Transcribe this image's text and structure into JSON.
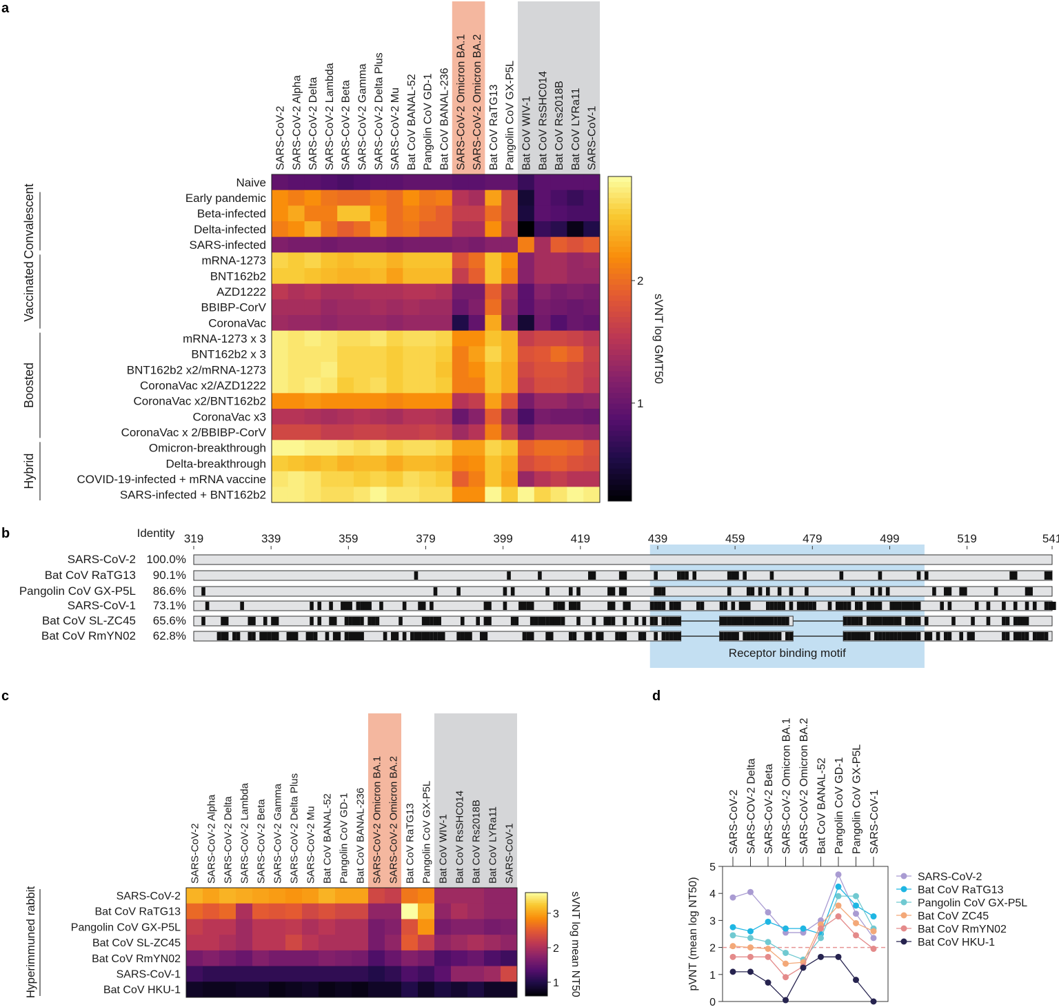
{
  "panels": {
    "a": "a",
    "b": "b",
    "c": "c",
    "d": "d"
  },
  "chart_data": [
    {
      "id": "a",
      "type": "heatmap",
      "columns": [
        "SARS-CoV-2",
        "SARS-CoV-2 Alpha",
        "SARS-CoV-2 Delta",
        "SARS-CoV-2 Lambda",
        "SARS-CoV-2 Beta",
        "SARS-CoV-2 Gamma",
        "SARS-CoV-2 Delta Plus",
        "SARS-CoV-2 Mu",
        "Bat CoV BANAL-52",
        "Pangolin CoV GD-1",
        "Bat CoV BANAL-236",
        "SARS-CoV-2 Omicron BA.1",
        "SARS-CoV-2 Omicron BA.2",
        "Bat CoV RaTG13",
        "Pangolin CoV GX-P5L",
        "Bat CoV WIV-1",
        "Bat CoV RsSHC014",
        "Bat CoV Rs2018B",
        "Bat CoV LYRa11",
        "SARS-CoV-1"
      ],
      "rows": [
        "Naive",
        "Early pandemic",
        "Beta-infected",
        "Delta-infected",
        "SARS-infected",
        "mRNA-1273",
        "BNT162b2",
        "AZD1222",
        "BBIBP-CorV",
        "CoronaVac",
        "mRNA-1273 x 3",
        "BNT162b2 x 3",
        "BNT162b2 x2/mRNA-1273",
        "CoronaVac x2/AZD1222",
        "CoronaVac x2/BNT162b2",
        "CoronaVac x3",
        "CoronaVac x 2/BBIBP-CorV",
        "Omicron-breakthrough",
        "Delta-breakthrough",
        "COVID-19-infected + mRNA vaccine",
        "SARS-infected + BNT162b2"
      ],
      "groups": [
        {
          "label": "Convalescent",
          "from": 1,
          "to": 4
        },
        {
          "label": "Vaccinated",
          "from": 5,
          "to": 9
        },
        {
          "label": "Boosted",
          "from": 10,
          "to": 16
        },
        {
          "label": "Hybrid",
          "from": 17,
          "to": 20
        }
      ],
      "highlight_orange_cols": [
        11,
        12
      ],
      "highlight_gray_cols": [
        15,
        16,
        17,
        18,
        19
      ],
      "colorbar": {
        "label": "sVNT log GMT50",
        "ticks": [
          "1",
          "2"
        ],
        "tick_values": [
          1,
          2
        ],
        "vmin": 0.2,
        "vmax": 2.85
      },
      "values": [
        [
          0.95,
          0.9,
          0.9,
          0.85,
          0.8,
          0.85,
          0.9,
          0.9,
          0.95,
          0.95,
          0.95,
          0.9,
          0.9,
          0.95,
          0.95,
          0.7,
          0.9,
          0.9,
          0.9,
          0.9
        ],
        [
          2.2,
          2.1,
          2.2,
          2.05,
          2.0,
          2.0,
          2.1,
          2.0,
          2.2,
          2.05,
          2.1,
          1.5,
          1.4,
          2.3,
          1.7,
          0.45,
          0.9,
          0.8,
          0.7,
          0.8
        ],
        [
          2.2,
          2.35,
          2.1,
          2.1,
          2.5,
          2.5,
          2.2,
          2.0,
          2.1,
          2.0,
          1.9,
          1.6,
          1.6,
          2.0,
          1.7,
          0.5,
          0.9,
          0.85,
          0.8,
          0.8
        ],
        [
          2.1,
          2.2,
          2.4,
          2.05,
          1.9,
          2.0,
          2.3,
          2.0,
          2.05,
          1.9,
          1.9,
          1.45,
          1.45,
          2.2,
          1.6,
          0.2,
          0.7,
          0.6,
          0.3,
          0.55
        ],
        [
          1.15,
          1.1,
          1.1,
          1.05,
          1.1,
          1.1,
          1.1,
          1.05,
          1.1,
          1.1,
          1.1,
          1.15,
          1.1,
          1.2,
          1.2,
          2.1,
          1.4,
          1.9,
          1.8,
          1.9
        ],
        [
          2.6,
          2.55,
          2.6,
          2.5,
          2.45,
          2.5,
          2.5,
          2.4,
          2.5,
          2.5,
          2.5,
          1.8,
          2.0,
          2.5,
          2.2,
          1.2,
          1.4,
          1.4,
          1.3,
          1.35
        ],
        [
          2.55,
          2.55,
          2.5,
          2.45,
          2.4,
          2.4,
          2.45,
          2.3,
          2.45,
          2.45,
          2.45,
          1.6,
          1.9,
          2.5,
          2.1,
          1.2,
          1.4,
          1.4,
          1.3,
          1.3
        ],
        [
          1.55,
          1.45,
          1.5,
          1.4,
          1.4,
          1.45,
          1.45,
          1.45,
          1.5,
          1.5,
          1.45,
          1.1,
          1.1,
          1.9,
          1.4,
          0.9,
          1.2,
          1.1,
          1.15,
          1.1
        ],
        [
          1.4,
          1.4,
          1.4,
          1.3,
          1.35,
          1.35,
          1.4,
          1.35,
          1.4,
          1.35,
          1.35,
          1.0,
          1.15,
          2.0,
          1.3,
          0.9,
          1.1,
          1.05,
          1.0,
          1.05
        ],
        [
          1.35,
          1.3,
          1.3,
          1.25,
          1.3,
          1.3,
          1.3,
          1.25,
          1.3,
          1.3,
          1.3,
          0.55,
          0.95,
          2.35,
          1.2,
          0.45,
          1.05,
          0.85,
          1.0,
          0.95
        ],
        [
          2.75,
          2.7,
          2.75,
          2.7,
          2.65,
          2.65,
          2.7,
          2.6,
          2.65,
          2.65,
          2.6,
          2.2,
          2.2,
          2.5,
          2.4,
          1.6,
          1.7,
          1.7,
          1.65,
          1.55
        ],
        [
          2.75,
          2.7,
          2.7,
          2.7,
          2.6,
          2.6,
          2.6,
          2.55,
          2.6,
          2.6,
          2.55,
          2.1,
          2.3,
          2.6,
          2.4,
          1.8,
          1.85,
          2.0,
          1.9,
          1.65
        ],
        [
          2.75,
          2.7,
          2.7,
          2.75,
          2.6,
          2.6,
          2.6,
          2.55,
          2.6,
          2.6,
          2.5,
          2.1,
          2.2,
          2.5,
          2.35,
          1.7,
          1.8,
          1.8,
          1.7,
          1.6
        ],
        [
          2.75,
          2.7,
          2.75,
          2.7,
          2.55,
          2.6,
          2.65,
          2.55,
          2.6,
          2.6,
          2.55,
          2.1,
          2.1,
          2.5,
          2.35,
          1.6,
          1.75,
          1.75,
          1.7,
          1.55
        ],
        [
          2.2,
          2.2,
          2.25,
          2.2,
          2.2,
          2.2,
          2.2,
          2.15,
          2.2,
          2.2,
          2.2,
          1.5,
          1.6,
          2.3,
          1.85,
          1.1,
          1.3,
          1.3,
          1.2,
          1.25
        ],
        [
          1.5,
          1.5,
          1.45,
          1.4,
          1.45,
          1.5,
          1.45,
          1.4,
          1.5,
          1.5,
          1.45,
          1.0,
          1.2,
          1.9,
          1.3,
          0.8,
          1.1,
          1.05,
          1.05,
          1.0
        ],
        [
          1.7,
          1.7,
          1.7,
          1.6,
          1.6,
          1.65,
          1.65,
          1.6,
          1.6,
          1.65,
          1.6,
          1.35,
          1.5,
          2.1,
          1.6,
          1.1,
          1.3,
          1.3,
          1.3,
          1.25
        ],
        [
          2.8,
          2.8,
          2.75,
          2.75,
          2.7,
          2.65,
          2.7,
          2.6,
          2.65,
          2.65,
          2.6,
          2.3,
          2.3,
          2.6,
          2.5,
          1.9,
          2.0,
          2.0,
          1.95,
          1.8
        ],
        [
          2.55,
          2.5,
          2.45,
          2.5,
          2.4,
          2.45,
          2.45,
          2.35,
          2.45,
          2.45,
          2.4,
          2.15,
          2.2,
          2.5,
          2.35,
          1.75,
          1.85,
          1.9,
          1.8,
          1.75
        ],
        [
          2.7,
          2.75,
          2.7,
          2.6,
          2.6,
          2.55,
          2.6,
          2.55,
          2.65,
          2.6,
          2.55,
          1.9,
          2.1,
          2.5,
          2.3,
          1.3,
          1.5,
          1.6,
          1.5,
          1.5
        ],
        [
          2.75,
          2.75,
          2.7,
          2.65,
          2.65,
          2.7,
          2.8,
          2.7,
          2.7,
          2.65,
          2.65,
          2.2,
          2.2,
          2.8,
          2.55,
          2.8,
          2.6,
          2.7,
          2.8,
          2.75
        ]
      ]
    },
    {
      "id": "b",
      "type": "table",
      "identity_header": "Identity",
      "ticks": [
        "319",
        "339",
        "359",
        "379",
        "399",
        "419",
        "439",
        "459",
        "479",
        "499",
        "519",
        "541"
      ],
      "range": [
        319,
        541
      ],
      "sequences": [
        {
          "name": "SARS-CoV-2",
          "identity": "100.0%"
        },
        {
          "name": "Bat CoV RaTG13",
          "identity": "90.1%"
        },
        {
          "name": "Pangolin CoV GX-P5L",
          "identity": "86.6%"
        },
        {
          "name": "SARS-CoV-1",
          "identity": "73.1%"
        },
        {
          "name": "Bat CoV SL-ZC45",
          "identity": "65.6%"
        },
        {
          "name": "Bat CoV RmYN02",
          "identity": "62.8%"
        }
      ],
      "rbm_label": "Receptor binding motif",
      "rbm_range": [
        437,
        508
      ]
    },
    {
      "id": "c",
      "type": "heatmap",
      "columns": [
        "SARS-CoV-2",
        "SARS-CoV-2 Alpha",
        "SARS-CoV-2 Delta",
        "SARS-CoV-2 Lambda",
        "SARS-CoV-2 Beta",
        "SARS-CoV-2 Gamma",
        "SARS-CoV-2 Delta Plus",
        "SARS-CoV-2 Mu",
        "Bat CoV BANAL-52",
        "Pangolin CoV GD-1",
        "Bat CoV BANAL-236",
        "SARS-CoV-2 Omicron BA.1",
        "SARS-CoV-2 Omicron BA.2",
        "Bat CoV RaTG13",
        "Pangolin CoV GX-P5L",
        "Bat CoV WIV-1",
        "Bat CoV RsSHC014",
        "Bat CoV Rs2018B",
        "Bat CoV LYRa11",
        "SARS-CoV-1"
      ],
      "rows": [
        "SARS-CoV-2",
        "Bat CoV RaTG13",
        "Pangolin CoV GX-P5L",
        "Bat CoV SL-ZC45",
        "Bat CoV RmYN02",
        "SARS-CoV-1",
        "Bat CoV HKU-1"
      ],
      "side_label": "Hyperimmuned rabbit",
      "highlight_orange_cols": [
        11,
        12
      ],
      "highlight_gray_cols": [
        15,
        16,
        17,
        18,
        19
      ],
      "colorbar": {
        "label": "sVNT log mean NT50",
        "ticks": [
          "1",
          "2",
          "3"
        ],
        "tick_values": [
          1,
          2,
          3
        ],
        "vmin": 0.6,
        "vmax": 3.6
      },
      "values": [
        [
          3.1,
          3.0,
          3.1,
          3.05,
          3.0,
          2.95,
          2.9,
          2.95,
          3.1,
          3.0,
          3.0,
          2.3,
          2.2,
          2.7,
          2.8,
          1.9,
          1.9,
          1.9,
          1.8,
          1.8
        ],
        [
          2.6,
          2.5,
          2.6,
          2.0,
          2.5,
          2.45,
          2.5,
          2.3,
          2.4,
          2.3,
          2.3,
          1.8,
          1.8,
          3.6,
          3.1,
          1.8,
          2.0,
          1.9,
          1.8,
          1.8
        ],
        [
          2.2,
          2.1,
          2.1,
          1.9,
          2.1,
          2.1,
          2.15,
          2.0,
          2.1,
          2.0,
          2.0,
          1.6,
          1.7,
          2.4,
          2.9,
          1.6,
          1.7,
          1.7,
          1.6,
          1.65
        ],
        [
          2.1,
          2.1,
          2.0,
          1.9,
          2.1,
          2.1,
          2.3,
          2.1,
          2.0,
          2.0,
          2.0,
          1.6,
          1.8,
          2.5,
          2.2,
          1.8,
          1.9,
          2.0,
          1.9,
          1.8
        ],
        [
          1.6,
          1.7,
          1.6,
          1.5,
          1.7,
          1.6,
          1.6,
          1.6,
          1.7,
          1.65,
          1.6,
          1.3,
          1.5,
          1.7,
          1.6,
          1.3,
          1.4,
          1.5,
          1.3,
          1.2
        ],
        [
          1.2,
          1.1,
          1.1,
          1.1,
          1.1,
          1.1,
          1.1,
          1.1,
          1.1,
          1.1,
          1.1,
          1.0,
          1.1,
          1.3,
          1.2,
          1.4,
          1.8,
          1.8,
          1.9,
          2.3
        ],
        [
          0.8,
          0.75,
          0.75,
          0.8,
          0.8,
          0.7,
          0.75,
          0.8,
          0.7,
          0.75,
          0.7,
          0.8,
          0.8,
          1.0,
          0.8,
          0.95,
          0.85,
          0.95,
          0.8,
          0.8
        ]
      ]
    },
    {
      "id": "d",
      "type": "line",
      "categories": [
        "SARS-CoV-2",
        "SARS-COV-2 Delta",
        "SARS-CoV-2 Beta",
        "SARS-CoV-2 Omicron BA.1",
        "SARS-CoV-2 Omicron BA.2",
        "Bat CoV BANAL-52",
        "Pangolin CoV GD-1",
        "Pangolin CoV GX-P5L",
        "SARS-CoV-1"
      ],
      "ylabel": "pVNT (mean log NT50)",
      "ylim": [
        0,
        5
      ],
      "yticks": [
        "0",
        "1",
        "2",
        "3",
        "4",
        "5"
      ],
      "threshold": 2,
      "legend_position": "right",
      "series": [
        {
          "name": "SARS-CoV-2",
          "color": "#a99bd2",
          "values": [
            3.85,
            4.05,
            3.3,
            2.55,
            2.55,
            3.0,
            4.7,
            3.25,
            2.35
          ]
        },
        {
          "name": "Bat CoV RaTG13",
          "color": "#1fb6e3",
          "values": [
            2.75,
            2.6,
            2.95,
            2.7,
            2.7,
            2.5,
            4.25,
            3.55,
            3.15
          ]
        },
        {
          "name": "Pangolin CoV GX-P5L",
          "color": "#70c9d1",
          "values": [
            2.45,
            2.35,
            2.2,
            1.8,
            1.55,
            2.35,
            3.9,
            3.9,
            2.7
          ]
        },
        {
          "name": "Bat CoV ZC45",
          "color": "#f3a878",
          "values": [
            2.05,
            2.0,
            1.95,
            1.4,
            1.45,
            2.85,
            3.55,
            2.9,
            2.6
          ]
        },
        {
          "name": "Bat CoV RmYN02",
          "color": "#e48a8a",
          "values": [
            1.65,
            1.65,
            1.65,
            0.9,
            1.3,
            2.7,
            3.15,
            2.45,
            1.95
          ]
        },
        {
          "name": "Bat CoV HKU-1",
          "color": "#26234f",
          "values": [
            1.1,
            1.1,
            0.7,
            0.05,
            1.25,
            1.65,
            1.65,
            0.8,
            0.0
          ]
        }
      ]
    }
  ]
}
